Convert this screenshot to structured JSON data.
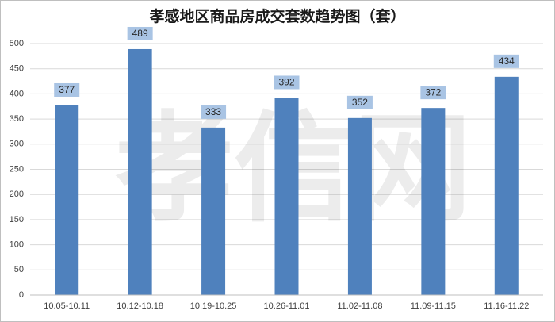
{
  "chart_data": {
    "type": "bar",
    "title": "孝感地区商品房成交套数趋势图（套）",
    "watermark": "孝信网",
    "categories": [
      "10.05-10.11",
      "10.12-10.18",
      "10.19-10.25",
      "10.26-11.01",
      "11.02-11.08",
      "11.09-11.15",
      "11.16-11.22"
    ],
    "values": [
      377,
      489,
      333,
      392,
      352,
      372,
      434
    ],
    "color": "#4f81bd",
    "ylim": [
      0,
      500
    ],
    "yticks": [
      0,
      50,
      100,
      150,
      200,
      250,
      300,
      350,
      400,
      450,
      500
    ],
    "grid": true
  }
}
